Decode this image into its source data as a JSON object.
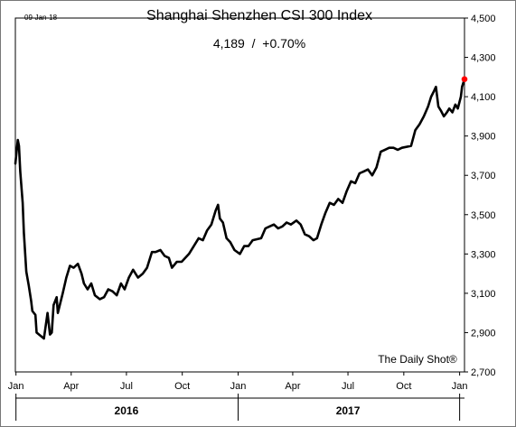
{
  "date_stamp": "09-Jan-18",
  "title": "Shanghai Shenzhen CSI 300 Index",
  "subtitle": "4,189  /  +0.70%",
  "credit": "The Daily Shot®",
  "colors": {
    "line": "#000000",
    "marker": "#ff0000",
    "frame": "#000000"
  },
  "chart_data": {
    "type": "line",
    "title": "Shanghai Shenzhen CSI 300 Index",
    "xlabel": "",
    "ylabel": "",
    "xlim": [
      "2015-12-31",
      "2018-01-09"
    ],
    "ylim": [
      2700,
      4500
    ],
    "yticks": [
      2700,
      2900,
      3100,
      3300,
      3500,
      3700,
      3900,
      4100,
      4300,
      4500
    ],
    "ytick_labels": [
      "2,700",
      "2,900",
      "3,100",
      "3,300",
      "3,500",
      "3,700",
      "3,900",
      "4,100",
      "4,300",
      "4,500"
    ],
    "xticks": [
      {
        "date": "2016-01-01",
        "label": "Jan"
      },
      {
        "date": "2016-04-01",
        "label": "Apr"
      },
      {
        "date": "2016-07-01",
        "label": "Jul"
      },
      {
        "date": "2016-10-01",
        "label": "Oct"
      },
      {
        "date": "2017-01-01",
        "label": "Jan"
      },
      {
        "date": "2017-04-01",
        "label": "Apr"
      },
      {
        "date": "2017-07-01",
        "label": "Jul"
      },
      {
        "date": "2017-10-01",
        "label": "Oct"
      },
      {
        "date": "2018-01-01",
        "label": "Jan"
      }
    ],
    "year_labels": [
      {
        "date": "2016-07-01",
        "label": "2016"
      },
      {
        "date": "2017-07-01",
        "label": "2017"
      }
    ],
    "year_dividers": [
      "2016-01-01",
      "2017-01-01",
      "2018-01-01"
    ],
    "grid": false,
    "series": [
      {
        "x": [
          "2015-12-31",
          "2016-01-04",
          "2016-01-06",
          "2016-01-08",
          "2016-01-12",
          "2016-01-14",
          "2016-01-18",
          "2016-01-22",
          "2016-01-26",
          "2016-01-28",
          "2016-02-02",
          "2016-02-04",
          "2016-02-16",
          "2016-02-22",
          "2016-02-26",
          "2016-02-29",
          "2016-03-03",
          "2016-03-08",
          "2016-03-10",
          "2016-03-14",
          "2016-03-18",
          "2016-03-24",
          "2016-03-30",
          "2016-04-05",
          "2016-04-12",
          "2016-04-18",
          "2016-04-22",
          "2016-04-28",
          "2016-05-04",
          "2016-05-10",
          "2016-05-18",
          "2016-05-25",
          "2016-06-01",
          "2016-06-08",
          "2016-06-15",
          "2016-06-22",
          "2016-06-28",
          "2016-07-05",
          "2016-07-12",
          "2016-07-20",
          "2016-07-28",
          "2016-08-04",
          "2016-08-12",
          "2016-08-18",
          "2016-08-26",
          "2016-09-02",
          "2016-09-09",
          "2016-09-14",
          "2016-09-22",
          "2016-09-30",
          "2016-10-12",
          "2016-10-20",
          "2016-10-28",
          "2016-11-04",
          "2016-11-11",
          "2016-11-18",
          "2016-11-25",
          "2016-11-29",
          "2016-12-02",
          "2016-12-07",
          "2016-12-13",
          "2016-12-19",
          "2016-12-26",
          "2017-01-04",
          "2017-01-11",
          "2017-01-18",
          "2017-01-25",
          "2017-02-08",
          "2017-02-15",
          "2017-02-22",
          "2017-03-01",
          "2017-03-08",
          "2017-03-15",
          "2017-03-22",
          "2017-03-29",
          "2017-04-07",
          "2017-04-14",
          "2017-04-21",
          "2017-04-28",
          "2017-05-05",
          "2017-05-11",
          "2017-05-18",
          "2017-05-25",
          "2017-06-01",
          "2017-06-08",
          "2017-06-15",
          "2017-06-22",
          "2017-06-29",
          "2017-07-06",
          "2017-07-13",
          "2017-07-20",
          "2017-07-27",
          "2017-08-03",
          "2017-08-10",
          "2017-08-17",
          "2017-08-24",
          "2017-08-31",
          "2017-09-07",
          "2017-09-14",
          "2017-09-21",
          "2017-09-28",
          "2017-10-13",
          "2017-10-20",
          "2017-10-27",
          "2017-11-03",
          "2017-11-10",
          "2017-11-15",
          "2017-11-20",
          "2017-11-23",
          "2017-11-27",
          "2017-12-01",
          "2017-12-06",
          "2017-12-11",
          "2017-12-15",
          "2017-12-20",
          "2017-12-25",
          "2017-12-29",
          "2018-01-03",
          "2018-01-05",
          "2018-01-09"
        ],
        "values": [
          3760,
          3880,
          3850,
          3720,
          3560,
          3410,
          3210,
          3140,
          3060,
          3010,
          2990,
          2900,
          2870,
          3000,
          2890,
          2900,
          3040,
          3080,
          3000,
          3050,
          3100,
          3180,
          3240,
          3230,
          3250,
          3200,
          3150,
          3120,
          3150,
          3090,
          3070,
          3080,
          3120,
          3110,
          3090,
          3150,
          3120,
          3180,
          3220,
          3180,
          3200,
          3230,
          3310,
          3310,
          3320,
          3290,
          3280,
          3230,
          3260,
          3260,
          3300,
          3340,
          3380,
          3370,
          3420,
          3450,
          3520,
          3550,
          3480,
          3460,
          3380,
          3360,
          3320,
          3300,
          3340,
          3340,
          3370,
          3380,
          3430,
          3440,
          3450,
          3430,
          3440,
          3460,
          3450,
          3470,
          3450,
          3400,
          3390,
          3370,
          3380,
          3450,
          3510,
          3560,
          3550,
          3580,
          3560,
          3620,
          3670,
          3660,
          3710,
          3720,
          3730,
          3700,
          3740,
          3820,
          3830,
          3840,
          3840,
          3830,
          3840,
          3850,
          3930,
          3960,
          4000,
          4050,
          4100,
          4130,
          4150,
          4050,
          4030,
          4000,
          4020,
          4040,
          4020,
          4060,
          4040,
          4100,
          4150,
          4189
        ]
      }
    ],
    "last_value": 4189,
    "last_change_pct": 0.7
  }
}
